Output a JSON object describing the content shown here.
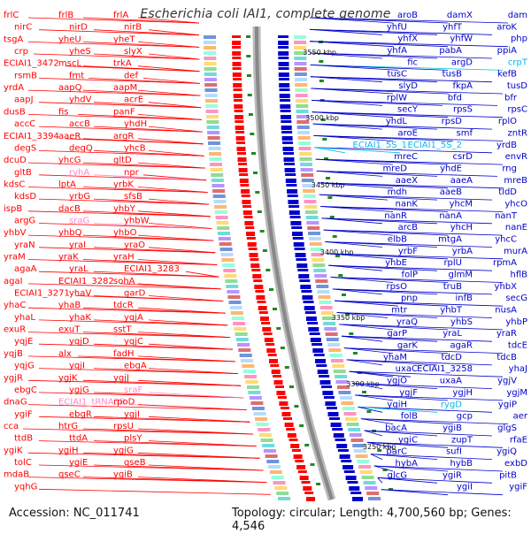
{
  "title": "Escherichia coli IAI1, complete genome",
  "accession": "Accession: NC_011741",
  "topology": "Topology: circular; Length: 4,700,560 bp; Genes: 4,546",
  "colors": {
    "left_genes": "#ff0000",
    "right_genes": "#0000cc",
    "rna_left": "#ff88cc",
    "rna_right": "#00bbee",
    "backbone": "#888888"
  },
  "ticks": [
    "3550 kbp",
    "3500 kbp",
    "3450 kbp",
    "3400 kbp",
    "3350 kbp",
    "3300 kbp",
    "3250 kbp"
  ],
  "left_labels": [
    {
      "text": "frlC",
      "color": "#ff0000"
    },
    {
      "text": "frlB",
      "color": "#ff0000"
    },
    {
      "text": "frlA",
      "color": "#ff0000"
    },
    {
      "text": "nirC",
      "color": "#ff0000"
    },
    {
      "text": "nirD",
      "color": "#ff0000"
    },
    {
      "text": "nirB",
      "color": "#ff0000"
    },
    {
      "text": "tsgA",
      "color": "#ff0000"
    },
    {
      "text": "yheU",
      "color": "#ff0000"
    },
    {
      "text": "yheT",
      "color": "#ff0000"
    },
    {
      "text": "crp",
      "color": "#ff0000"
    },
    {
      "text": "yheS",
      "color": "#ff0000"
    },
    {
      "text": "slyX",
      "color": "#ff0000"
    },
    {
      "text": "ECIAI1_3472",
      "color": "#ff0000"
    },
    {
      "text": "mscL",
      "color": "#ff0000"
    },
    {
      "text": "trkA",
      "color": "#ff0000"
    },
    {
      "text": "rsmB",
      "color": "#ff0000"
    },
    {
      "text": "fmt",
      "color": "#ff0000"
    },
    {
      "text": "def",
      "color": "#ff0000"
    },
    {
      "text": "yrdA",
      "color": "#ff0000"
    },
    {
      "text": "aapQ",
      "color": "#ff0000"
    },
    {
      "text": "aapM",
      "color": "#ff0000"
    },
    {
      "text": "aapJ",
      "color": "#ff0000"
    },
    {
      "text": "yhdV",
      "color": "#ff0000"
    },
    {
      "text": "acrE",
      "color": "#ff0000"
    },
    {
      "text": "dusB",
      "color": "#ff0000"
    },
    {
      "text": "fis",
      "color": "#ff0000"
    },
    {
      "text": "panF",
      "color": "#ff0000"
    },
    {
      "text": "accC",
      "color": "#ff0000"
    },
    {
      "text": "accB",
      "color": "#ff0000"
    },
    {
      "text": "yhdH",
      "color": "#ff0000"
    },
    {
      "text": "ECIAI1_3394",
      "color": "#ff0000"
    },
    {
      "text": "aaeR",
      "color": "#ff0000"
    },
    {
      "text": "argR",
      "color": "#ff0000"
    },
    {
      "text": "degS",
      "color": "#ff0000"
    },
    {
      "text": "degQ",
      "color": "#ff0000"
    },
    {
      "text": "yhcB",
      "color": "#ff0000"
    },
    {
      "text": "dcuD",
      "color": "#ff0000"
    },
    {
      "text": "yhcG",
      "color": "#ff0000"
    },
    {
      "text": "gltD",
      "color": "#ff0000"
    },
    {
      "text": "gltB",
      "color": "#ff0000"
    },
    {
      "text": "ryhA",
      "color": "#ff88cc"
    },
    {
      "text": "npr",
      "color": "#ff0000"
    },
    {
      "text": "kdsC",
      "color": "#ff0000"
    },
    {
      "text": "lptA",
      "color": "#ff0000"
    },
    {
      "text": "yrbK",
      "color": "#ff0000"
    },
    {
      "text": "kdsD",
      "color": "#ff0000"
    },
    {
      "text": "yrbG",
      "color": "#ff0000"
    },
    {
      "text": "sfsB",
      "color": "#ff0000"
    },
    {
      "text": "ispB",
      "color": "#ff0000"
    },
    {
      "text": "dacB",
      "color": "#ff0000"
    },
    {
      "text": "yhbY",
      "color": "#ff0000"
    },
    {
      "text": "argG",
      "color": "#ff0000"
    },
    {
      "text": "sraG",
      "color": "#ff88cc"
    },
    {
      "text": "yhbW",
      "color": "#ff0000"
    },
    {
      "text": "yhbV",
      "color": "#ff0000"
    },
    {
      "text": "yhbQ",
      "color": "#ff0000"
    },
    {
      "text": "yhbO",
      "color": "#ff0000"
    },
    {
      "text": "yraN",
      "color": "#ff0000"
    },
    {
      "text": "yraI",
      "color": "#ff0000"
    },
    {
      "text": "yraO",
      "color": "#ff0000"
    },
    {
      "text": "yraM",
      "color": "#ff0000"
    },
    {
      "text": "yraK",
      "color": "#ff0000"
    },
    {
      "text": "yraH",
      "color": "#ff0000"
    },
    {
      "text": "agaA",
      "color": "#ff0000"
    },
    {
      "text": "yraL",
      "color": "#ff0000"
    },
    {
      "text": "ECIAI1_3283",
      "color": "#ff0000"
    },
    {
      "text": "agaI",
      "color": "#ff0000"
    },
    {
      "text": "ECIAI1_3282",
      "color": "#ff0000"
    },
    {
      "text": "sohA",
      "color": "#ff0000"
    },
    {
      "text": "ECIAI1_3271",
      "color": "#ff0000"
    },
    {
      "text": "yhaV",
      "color": "#ff0000"
    },
    {
      "text": "garD",
      "color": "#ff0000"
    },
    {
      "text": "yhaC",
      "color": "#ff0000"
    },
    {
      "text": "yhaB",
      "color": "#ff0000"
    },
    {
      "text": "tdcR",
      "color": "#ff0000"
    },
    {
      "text": "yhaL",
      "color": "#ff0000"
    },
    {
      "text": "yhaK",
      "color": "#ff0000"
    },
    {
      "text": "yqjA",
      "color": "#ff0000"
    },
    {
      "text": "exuR",
      "color": "#ff0000"
    },
    {
      "text": "exuT",
      "color": "#ff0000"
    },
    {
      "text": "sstT",
      "color": "#ff0000"
    },
    {
      "text": "yqjE",
      "color": "#ff0000"
    },
    {
      "text": "yqjD",
      "color": "#ff0000"
    },
    {
      "text": "yqjC",
      "color": "#ff0000"
    },
    {
      "text": "yqjB",
      "color": "#ff0000"
    },
    {
      "text": "alx",
      "color": "#ff0000"
    },
    {
      "text": "fadH",
      "color": "#ff0000"
    },
    {
      "text": "yqjG",
      "color": "#ff0000"
    },
    {
      "text": "yqjI",
      "color": "#ff0000"
    },
    {
      "text": "ebgA",
      "color": "#ff0000"
    },
    {
      "text": "ygjR",
      "color": "#ff0000"
    },
    {
      "text": "ygjK",
      "color": "#ff0000"
    },
    {
      "text": "ygjJ",
      "color": "#ff0000"
    },
    {
      "text": "ebgC",
      "color": "#ff0000"
    },
    {
      "text": "ygjG",
      "color": "#ff0000"
    },
    {
      "text": "sraF",
      "color": "#ff88cc"
    },
    {
      "text": "dnaG",
      "color": "#ff0000"
    },
    {
      "text": "ECIAI1_tRNA38",
      "color": "#ff88cc"
    },
    {
      "text": "rpoD",
      "color": "#ff0000"
    },
    {
      "text": "ygiF",
      "color": "#ff0000"
    },
    {
      "text": "ebgR",
      "color": "#ff0000"
    },
    {
      "text": "ygjI",
      "color": "#ff0000"
    },
    {
      "text": "cca",
      "color": "#ff0000"
    },
    {
      "text": "htrG",
      "color": "#ff0000"
    },
    {
      "text": "rpsU",
      "color": "#ff0000"
    },
    {
      "text": "ttdB",
      "color": "#ff0000"
    },
    {
      "text": "ttdA",
      "color": "#ff0000"
    },
    {
      "text": "plsY",
      "color": "#ff0000"
    },
    {
      "text": "ygiK",
      "color": "#ff0000"
    },
    {
      "text": "ygiH",
      "color": "#ff0000"
    },
    {
      "text": "ygiG",
      "color": "#ff0000"
    },
    {
      "text": "tolC",
      "color": "#ff0000"
    },
    {
      "text": "ygiE",
      "color": "#ff0000"
    },
    {
      "text": "qseB",
      "color": "#ff0000"
    },
    {
      "text": "mdaB",
      "color": "#ff0000"
    },
    {
      "text": "qseC",
      "color": "#ff0000"
    },
    {
      "text": "ygiB",
      "color": "#ff0000"
    },
    {
      "text": "yqhG",
      "color": "#ff0000"
    }
  ],
  "right_labels": [
    {
      "text": "dam",
      "color": "#0000cc"
    },
    {
      "text": "damX",
      "color": "#0000cc"
    },
    {
      "text": "aroB",
      "color": "#0000cc"
    },
    {
      "text": "aroK",
      "color": "#0000cc"
    },
    {
      "text": "yhfT",
      "color": "#0000cc"
    },
    {
      "text": "yhfU",
      "color": "#0000cc"
    },
    {
      "text": "php",
      "color": "#0000cc"
    },
    {
      "text": "yhfW",
      "color": "#0000cc"
    },
    {
      "text": "yhfX",
      "color": "#0000cc"
    },
    {
      "text": "ppiA",
      "color": "#0000cc"
    },
    {
      "text": "pabA",
      "color": "#0000cc"
    },
    {
      "text": "yhfA",
      "color": "#0000cc"
    },
    {
      "text": "crpT",
      "color": "#00bbee"
    },
    {
      "text": "argD",
      "color": "#0000cc"
    },
    {
      "text": "fic",
      "color": "#0000cc"
    },
    {
      "text": "kefB",
      "color": "#0000cc"
    },
    {
      "text": "tusB",
      "color": "#0000cc"
    },
    {
      "text": "tusC",
      "color": "#0000cc"
    },
    {
      "text": "tusD",
      "color": "#0000cc"
    },
    {
      "text": "fkpA",
      "color": "#0000cc"
    },
    {
      "text": "slyD",
      "color": "#0000cc"
    },
    {
      "text": "bfr",
      "color": "#0000cc"
    },
    {
      "text": "bfd",
      "color": "#0000cc"
    },
    {
      "text": "rplW",
      "color": "#0000cc"
    },
    {
      "text": "rpsC",
      "color": "#0000cc"
    },
    {
      "text": "rpsS",
      "color": "#0000cc"
    },
    {
      "text": "secY",
      "color": "#0000cc"
    },
    {
      "text": "rplO",
      "color": "#0000cc"
    },
    {
      "text": "rpsD",
      "color": "#0000cc"
    },
    {
      "text": "yhdL",
      "color": "#0000cc"
    },
    {
      "text": "zntR",
      "color": "#0000cc"
    },
    {
      "text": "smf",
      "color": "#0000cc"
    },
    {
      "text": "aroE",
      "color": "#0000cc"
    },
    {
      "text": "yrdB",
      "color": "#0000cc"
    },
    {
      "text": "ECIAI1_5S_2",
      "color": "#00bbee"
    },
    {
      "text": "ECIAI1_5S_1",
      "color": "#00bbee"
    },
    {
      "text": "envR",
      "color": "#0000cc"
    },
    {
      "text": "csrD",
      "color": "#0000cc"
    },
    {
      "text": "mreC",
      "color": "#0000cc"
    },
    {
      "text": "rng",
      "color": "#0000cc"
    },
    {
      "text": "yhdE",
      "color": "#0000cc"
    },
    {
      "text": "mreD",
      "color": "#0000cc"
    },
    {
      "text": "mreB",
      "color": "#0000cc"
    },
    {
      "text": "aaeA",
      "color": "#0000cc"
    },
    {
      "text": "aaeX",
      "color": "#0000cc"
    },
    {
      "text": "tldD",
      "color": "#0000cc"
    },
    {
      "text": "aaeB",
      "color": "#0000cc"
    },
    {
      "text": "mdh",
      "color": "#0000cc"
    },
    {
      "text": "yhcO",
      "color": "#0000cc"
    },
    {
      "text": "yhcM",
      "color": "#0000cc"
    },
    {
      "text": "nanK",
      "color": "#0000cc"
    },
    {
      "text": "nanT",
      "color": "#0000cc"
    },
    {
      "text": "nanA",
      "color": "#0000cc"
    },
    {
      "text": "nanR",
      "color": "#0000cc"
    },
    {
      "text": "nanE",
      "color": "#0000cc"
    },
    {
      "text": "yhcH",
      "color": "#0000cc"
    },
    {
      "text": "arcB",
      "color": "#0000cc"
    },
    {
      "text": "yhcC",
      "color": "#0000cc"
    },
    {
      "text": "mtgA",
      "color": "#0000cc"
    },
    {
      "text": "elbB",
      "color": "#0000cc"
    },
    {
      "text": "murA",
      "color": "#0000cc"
    },
    {
      "text": "yrbA",
      "color": "#0000cc"
    },
    {
      "text": "yrbF",
      "color": "#0000cc"
    },
    {
      "text": "rpmA",
      "color": "#0000cc"
    },
    {
      "text": "rplU",
      "color": "#0000cc"
    },
    {
      "text": "yhbE",
      "color": "#0000cc"
    },
    {
      "text": "hflB",
      "color": "#0000cc"
    },
    {
      "text": "glmM",
      "color": "#0000cc"
    },
    {
      "text": "folP",
      "color": "#0000cc"
    },
    {
      "text": "yhbX",
      "color": "#0000cc"
    },
    {
      "text": "truB",
      "color": "#0000cc"
    },
    {
      "text": "rpsO",
      "color": "#0000cc"
    },
    {
      "text": "secG",
      "color": "#0000cc"
    },
    {
      "text": "infB",
      "color": "#0000cc"
    },
    {
      "text": "pnp",
      "color": "#0000cc"
    },
    {
      "text": "nusA",
      "color": "#0000cc"
    },
    {
      "text": "yhbT",
      "color": "#0000cc"
    },
    {
      "text": "mtr",
      "color": "#0000cc"
    },
    {
      "text": "yhbP",
      "color": "#0000cc"
    },
    {
      "text": "yhbS",
      "color": "#0000cc"
    },
    {
      "text": "yraQ",
      "color": "#0000cc"
    },
    {
      "text": "yraR",
      "color": "#0000cc"
    },
    {
      "text": "yraL",
      "color": "#0000cc"
    },
    {
      "text": "garP",
      "color": "#0000cc"
    },
    {
      "text": "tdcE",
      "color": "#0000cc"
    },
    {
      "text": "agaR",
      "color": "#0000cc"
    },
    {
      "text": "garK",
      "color": "#0000cc"
    },
    {
      "text": "tdcB",
      "color": "#0000cc"
    },
    {
      "text": "tdcD",
      "color": "#0000cc"
    },
    {
      "text": "yhaM",
      "color": "#0000cc"
    },
    {
      "text": "yhaJ",
      "color": "#0000cc"
    },
    {
      "text": "ECIAI1_3258",
      "color": "#0000cc"
    },
    {
      "text": "uxaC",
      "color": "#0000cc"
    },
    {
      "text": "ygjV",
      "color": "#0000cc"
    },
    {
      "text": "uxaA",
      "color": "#0000cc"
    },
    {
      "text": "ygjO",
      "color": "#0000cc"
    },
    {
      "text": "ygjM",
      "color": "#0000cc"
    },
    {
      "text": "ygjH",
      "color": "#0000cc"
    },
    {
      "text": "ygjF",
      "color": "#0000cc"
    },
    {
      "text": "ygiP",
      "color": "#0000cc"
    },
    {
      "text": "rygD",
      "color": "#00bbee"
    },
    {
      "text": "ygiH",
      "color": "#0000cc"
    },
    {
      "text": "aer",
      "color": "#0000cc"
    },
    {
      "text": "gcp",
      "color": "#0000cc"
    },
    {
      "text": "folB",
      "color": "#0000cc"
    },
    {
      "text": "glgS",
      "color": "#0000cc"
    },
    {
      "text": "ygiB",
      "color": "#0000cc"
    },
    {
      "text": "bacA",
      "color": "#0000cc"
    },
    {
      "text": "rfaE",
      "color": "#0000cc"
    },
    {
      "text": "zupT",
      "color": "#0000cc"
    },
    {
      "text": "ygiC",
      "color": "#0000cc"
    },
    {
      "text": "ygiQ",
      "color": "#0000cc"
    },
    {
      "text": "sufI",
      "color": "#0000cc"
    },
    {
      "text": "parC",
      "color": "#0000cc"
    },
    {
      "text": "exbD",
      "color": "#0000cc"
    },
    {
      "text": "hybB",
      "color": "#0000cc"
    },
    {
      "text": "hybA",
      "color": "#0000cc"
    },
    {
      "text": "pitB",
      "color": "#0000cc"
    },
    {
      "text": "ygiR",
      "color": "#0000cc"
    },
    {
      "text": "glcG",
      "color": "#0000cc"
    },
    {
      "text": "ygiF",
      "color": "#0000cc"
    },
    {
      "text": "ygiI",
      "color": "#0000cc"
    }
  ]
}
